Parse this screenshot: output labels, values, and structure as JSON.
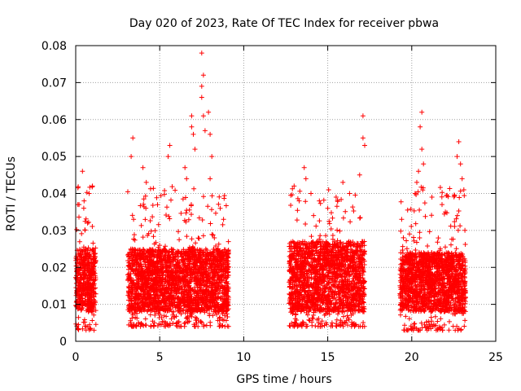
{
  "chart_data": {
    "type": "scatter",
    "title": "Day 020 of 2023, Rate Of TEC Index for receiver pbwa",
    "xlabel": "GPS time / hours",
    "ylabel": "ROTI / TECUs",
    "xlim": [
      0,
      25
    ],
    "ylim": [
      0,
      0.08
    ],
    "x_ticks": [
      0,
      5,
      10,
      15,
      20,
      25
    ],
    "x_tick_labels": [
      "0",
      "5",
      "10",
      "15",
      "20",
      "25"
    ],
    "y_ticks": [
      0,
      0.01,
      0.02,
      0.03,
      0.04,
      0.05,
      0.06,
      0.07,
      0.08
    ],
    "y_tick_labels": [
      "0",
      "0.01",
      "0.02",
      "0.03",
      "0.04",
      "0.05",
      "0.06",
      "0.07",
      "0.08"
    ],
    "grid": true,
    "marker": "plus",
    "color": "#ff0000",
    "series": [
      {
        "segments": [
          {
            "x_start": 0.0,
            "x_end": 1.2,
            "y_core": [
              0.008,
              0.025
            ],
            "y_range": [
              0.003,
              0.046
            ]
          },
          {
            "x_start": 3.1,
            "x_end": 9.1,
            "y_core": [
              0.008,
              0.025
            ],
            "y_range": [
              0.004,
              0.078
            ]
          },
          {
            "x_start": 12.7,
            "x_end": 17.2,
            "y_core": [
              0.008,
              0.027
            ],
            "y_range": [
              0.004,
              0.062
            ]
          },
          {
            "x_start": 19.3,
            "x_end": 23.2,
            "y_core": [
              0.008,
              0.024
            ],
            "y_range": [
              0.003,
              0.062
            ]
          }
        ],
        "points": [
          [
            0.4,
            0.046
          ],
          [
            0.5,
            0.038
          ],
          [
            0.2,
            0.037
          ],
          [
            0.8,
            0.04
          ],
          [
            1.0,
            0.042
          ],
          [
            3.4,
            0.055
          ],
          [
            3.3,
            0.05
          ],
          [
            4.0,
            0.047
          ],
          [
            4.2,
            0.043
          ],
          [
            5.6,
            0.053
          ],
          [
            5.5,
            0.05
          ],
          [
            6.5,
            0.047
          ],
          [
            6.6,
            0.044
          ],
          [
            6.9,
            0.061
          ],
          [
            6.9,
            0.058
          ],
          [
            7.0,
            0.056
          ],
          [
            7.1,
            0.052
          ],
          [
            7.5,
            0.078
          ],
          [
            7.6,
            0.072
          ],
          [
            7.5,
            0.069
          ],
          [
            7.5,
            0.066
          ],
          [
            7.6,
            0.061
          ],
          [
            7.7,
            0.057
          ],
          [
            7.9,
            0.062
          ],
          [
            8.0,
            0.056
          ],
          [
            8.1,
            0.05
          ],
          [
            8.0,
            0.044
          ],
          [
            8.6,
            0.036
          ],
          [
            8.8,
            0.033
          ],
          [
            13.0,
            0.042
          ],
          [
            13.3,
            0.038
          ],
          [
            13.6,
            0.047
          ],
          [
            13.7,
            0.044
          ],
          [
            14.0,
            0.04
          ],
          [
            14.5,
            0.038
          ],
          [
            15.0,
            0.036
          ],
          [
            15.5,
            0.039
          ],
          [
            15.9,
            0.043
          ],
          [
            16.3,
            0.04
          ],
          [
            16.9,
            0.045
          ],
          [
            17.1,
            0.061
          ],
          [
            17.1,
            0.055
          ],
          [
            17.2,
            0.053
          ],
          [
            19.4,
            0.033
          ],
          [
            19.5,
            0.028
          ],
          [
            20.2,
            0.04
          ],
          [
            20.3,
            0.043
          ],
          [
            20.4,
            0.046
          ],
          [
            20.5,
            0.058
          ],
          [
            20.6,
            0.062
          ],
          [
            20.6,
            0.052
          ],
          [
            20.7,
            0.048
          ],
          [
            21.2,
            0.039
          ],
          [
            21.8,
            0.037
          ],
          [
            22.0,
            0.035
          ],
          [
            22.7,
            0.05
          ],
          [
            22.8,
            0.054
          ],
          [
            22.9,
            0.048
          ],
          [
            23.0,
            0.044
          ],
          [
            23.1,
            0.041
          ]
        ]
      }
    ]
  }
}
